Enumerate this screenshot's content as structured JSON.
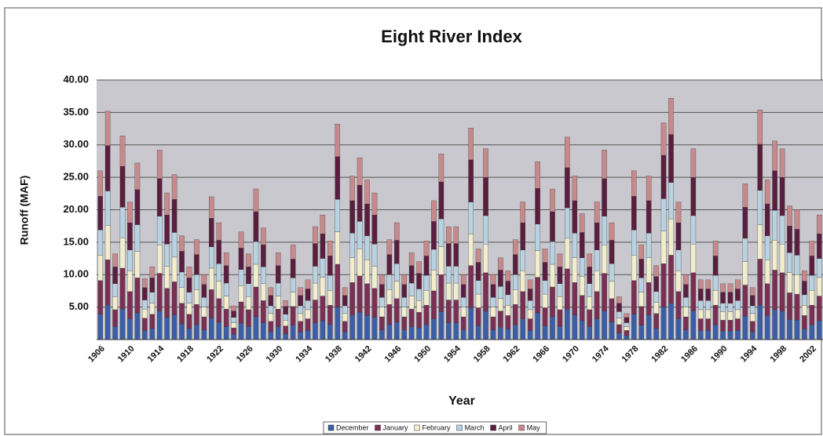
{
  "chart_data": {
    "type": "stacked_bar",
    "title": "Eight River Index",
    "x_label": "Year",
    "y_label": "Runoff (MAF)",
    "categories": [
      "1906",
      null,
      null,
      null,
      "1910",
      null,
      null,
      null,
      "1914",
      null,
      null,
      null,
      "1918",
      null,
      null,
      null,
      "1922",
      null,
      null,
      null,
      "1926",
      null,
      null,
      null,
      "1930",
      null,
      null,
      null,
      "1934",
      null,
      null,
      null,
      "1938",
      null,
      null,
      null,
      "1942",
      null,
      null,
      null,
      "1946",
      null,
      null,
      null,
      "1950",
      null,
      null,
      null,
      "1954",
      null,
      null,
      null,
      "1958",
      null,
      null,
      null,
      "1962",
      null,
      null,
      null,
      "1966",
      null,
      null,
      null,
      "1970",
      null,
      null,
      null,
      "1974",
      null,
      null,
      null,
      "1978",
      null,
      null,
      null,
      "1982",
      null,
      null,
      null,
      "1986",
      null,
      null,
      null,
      "1990",
      null,
      null,
      null,
      "1994",
      null,
      null,
      null,
      "1998",
      null,
      null,
      null,
      "2002",
      null
    ],
    "series": [
      {
        "name": "December",
        "color": "#3b5ea6",
        "values": [
          3.9,
          5.3,
          2.0,
          4.7,
          3.2,
          4.1,
          1.4,
          1.7,
          4.4,
          3.4,
          3.8,
          2.4,
          1.7,
          2.3,
          1.5,
          3.3,
          2.7,
          2.0,
          0.8,
          2.5,
          2.0,
          3.5,
          2.6,
          1.2,
          2.0,
          0.9,
          2.2,
          1.2,
          1.4,
          2.6,
          2.9,
          2.3,
          5.0,
          1.2,
          3.8,
          4.2,
          3.7,
          3.4,
          1.5,
          2.3,
          2.7,
          1.5,
          2.0,
          1.8,
          2.3,
          3.2,
          4.3,
          2.6,
          2.6,
          1.5,
          4.9,
          2.1,
          4.4,
          1.5,
          1.9,
          1.6,
          2.3,
          3.2,
          1.4,
          4.1,
          2.1,
          3.5,
          2.0,
          4.7,
          3.8,
          2.9,
          2.0,
          3.2,
          4.4,
          2.7,
          1.0,
          0.6,
          3.9,
          2.2,
          3.8,
          1.7,
          5.0,
          5.6,
          3.2,
          1.5,
          4.4,
          1.4,
          1.4,
          2.3,
          1.3,
          1.3,
          1.4,
          3.6,
          1.2,
          5.3,
          3.7,
          4.6,
          4.4,
          3.1,
          3,
          1.6,
          2.3,
          2.9
        ]
      },
      {
        "name": "January",
        "color": "#7b2f52",
        "values": [
          5.2,
          7,
          2.6,
          6.3,
          4.2,
          5.4,
          1.9,
          2.2,
          5.8,
          4.5,
          5.1,
          3.2,
          2.2,
          3.1,
          2,
          4.4,
          3.6,
          2.7,
          1,
          3.3,
          2.6,
          4.6,
          3.4,
          1.6,
          2.7,
          1.2,
          2.9,
          1.6,
          1.8,
          3.5,
          3.8,
          3,
          6.6,
          1.6,
          5,
          5.6,
          4.9,
          4.5,
          2,
          3.1,
          3.6,
          2,
          2.7,
          2.4,
          3,
          4.3,
          5.7,
          3.5,
          3.5,
          2,
          6.5,
          2.8,
          5.9,
          2,
          2.5,
          2.1,
          3.1,
          4.2,
          1.8,
          5.5,
          2.8,
          4.6,
          2.6,
          6.2,
          5,
          3.9,
          2.6,
          4.2,
          5.8,
          3.6,
          1.3,
          0.8,
          5.2,
          2.9,
          5,
          2.3,
          6.7,
          7.4,
          4.2,
          2,
          5.9,
          1.8,
          1.8,
          3,
          1.7,
          1.7,
          1.8,
          4.8,
          1.6,
          7.1,
          4.9,
          6.1,
          5.9,
          4.1,
          4,
          2.1,
          3,
          3.8
        ]
      },
      {
        "name": "February",
        "color": "#f2eecd",
        "values": [
          3.9,
          5.3,
          2.0,
          4.7,
          3.2,
          4.1,
          1.4,
          1.7,
          4.4,
          3.4,
          3.8,
          2.4,
          1.7,
          2.3,
          1.5,
          3.3,
          2.7,
          2.0,
          0.8,
          2.5,
          2.0,
          3.5,
          2.6,
          1.2,
          2.0,
          0.9,
          2.2,
          1.2,
          1.4,
          2.6,
          2.9,
          2.3,
          5.0,
          1.2,
          3.8,
          4.2,
          3.7,
          3.4,
          1.5,
          2.3,
          2.7,
          1.5,
          2.0,
          1.8,
          2.3,
          3.2,
          4.3,
          2.6,
          2.6,
          1.5,
          4.9,
          2.1,
          4.4,
          1.5,
          1.9,
          1.6,
          2.3,
          3.2,
          1.4,
          4.1,
          2.1,
          3.5,
          2.0,
          4.7,
          3.8,
          2.9,
          2.0,
          3.2,
          4.4,
          2.7,
          1.0,
          0.6,
          3.9,
          2.2,
          3.8,
          1.7,
          5.0,
          5.6,
          3.2,
          1.5,
          4.4,
          1.4,
          1.4,
          2.3,
          1.3,
          1.3,
          1.4,
          3.6,
          1.2,
          5.3,
          3.7,
          4.6,
          4.4,
          3.1,
          3,
          1.6,
          2.3,
          2.9
        ]
      },
      {
        "name": "March",
        "color": "#b8d2e2",
        "values": [
          3.9,
          5.3,
          2.0,
          4.7,
          3.2,
          4.1,
          1.4,
          1.7,
          4.4,
          3.4,
          3.8,
          2.4,
          1.7,
          2.3,
          1.5,
          3.3,
          2.7,
          2.0,
          0.8,
          2.5,
          2.0,
          3.5,
          2.6,
          1.2,
          2.0,
          0.9,
          2.2,
          1.2,
          1.4,
          2.6,
          2.9,
          2.3,
          5.0,
          1.2,
          3.8,
          4.2,
          3.7,
          3.4,
          1.5,
          2.3,
          2.7,
          1.5,
          2.0,
          1.8,
          2.3,
          3.2,
          4.3,
          2.6,
          2.6,
          1.5,
          4.9,
          2.1,
          4.4,
          1.5,
          1.9,
          1.6,
          2.3,
          3.2,
          1.4,
          4.1,
          2.1,
          3.5,
          2.0,
          4.7,
          3.8,
          2.9,
          2.0,
          3.2,
          4.4,
          2.7,
          1.0,
          0.6,
          3.9,
          2.2,
          3.8,
          1.7,
          5.0,
          5.6,
          3.2,
          1.5,
          4.4,
          1.4,
          1.4,
          2.3,
          1.3,
          1.3,
          1.4,
          3.6,
          1.2,
          5.3,
          3.7,
          4.6,
          4.4,
          3.1,
          3,
          1.6,
          2.3,
          2.9
        ]
      },
      {
        "name": "April",
        "color": "#5a1f3f",
        "values": [
          5.2,
          7,
          2.6,
          6.3,
          4.2,
          5.4,
          1.9,
          2.2,
          5.8,
          4.5,
          5.1,
          3.2,
          2.2,
          3.1,
          2,
          4.4,
          3.6,
          2.7,
          1,
          3.3,
          2.6,
          4.6,
          3.4,
          1.6,
          2.7,
          1.2,
          2.9,
          1.6,
          1.8,
          3.5,
          3.8,
          3,
          6.6,
          1.6,
          5,
          5.6,
          4.9,
          4.5,
          2,
          3.1,
          3.6,
          2,
          2.7,
          2.4,
          3,
          4.3,
          5.7,
          3.5,
          3.5,
          2,
          6.5,
          2.8,
          5.9,
          2,
          2.5,
          2.1,
          3.1,
          4.2,
          1.8,
          5.5,
          2.8,
          4.6,
          2.6,
          6.2,
          5,
          3.9,
          2.6,
          4.2,
          5.8,
          3.6,
          1.3,
          0.8,
          5.2,
          2.9,
          5,
          2.3,
          6.7,
          7.4,
          4.2,
          2,
          5.9,
          1.8,
          1.8,
          3,
          1.7,
          1.7,
          1.8,
          4.8,
          1.6,
          7.1,
          4.9,
          6.1,
          5.9,
          4.1,
          4,
          2.1,
          3,
          3.8
        ]
      },
      {
        "name": "May",
        "color": "#c78a8c",
        "values": [
          3.9,
          5.3,
          2.0,
          4.7,
          3.2,
          4.1,
          1.4,
          1.7,
          4.4,
          3.4,
          3.8,
          2.4,
          1.7,
          2.3,
          1.5,
          3.3,
          2.7,
          2.0,
          0.8,
          2.5,
          2.0,
          3.5,
          2.6,
          1.2,
          2.0,
          0.9,
          2.2,
          1.2,
          1.4,
          2.6,
          2.9,
          2.3,
          5.0,
          1.2,
          3.8,
          4.2,
          3.7,
          3.4,
          1.5,
          2.3,
          2.7,
          1.5,
          2.0,
          1.8,
          2.3,
          3.2,
          4.3,
          2.6,
          2.6,
          1.5,
          4.9,
          2.1,
          4.4,
          1.5,
          1.9,
          1.6,
          2.3,
          3.2,
          1.4,
          4.1,
          2.1,
          3.5,
          2.0,
          4.7,
          3.8,
          2.9,
          2.0,
          3.2,
          4.4,
          2.7,
          1.0,
          0.6,
          3.9,
          2.2,
          3.8,
          1.7,
          5.0,
          5.6,
          3.2,
          1.5,
          4.4,
          1.4,
          1.4,
          2.3,
          1.3,
          1.3,
          1.4,
          3.6,
          1.2,
          5.3,
          3.7,
          4.6,
          4.4,
          3.1,
          3,
          1.6,
          2.3,
          2.9
        ]
      }
    ],
    "ylim": [
      0,
      40
    ],
    "yticks": [
      {
        "value": 5,
        "label": "5.00"
      },
      {
        "value": 10,
        "label": "10.00"
      },
      {
        "value": 15,
        "label": "15.00"
      },
      {
        "value": 20,
        "label": "20.00"
      },
      {
        "value": 25,
        "label": "25.00"
      },
      {
        "value": 30,
        "label": "30.00"
      },
      {
        "value": 35,
        "label": "35.00"
      },
      {
        "value": 40,
        "label": "40.00"
      }
    ],
    "grid": true,
    "plot_background": "#c8c8ce",
    "legend": "bottom"
  }
}
